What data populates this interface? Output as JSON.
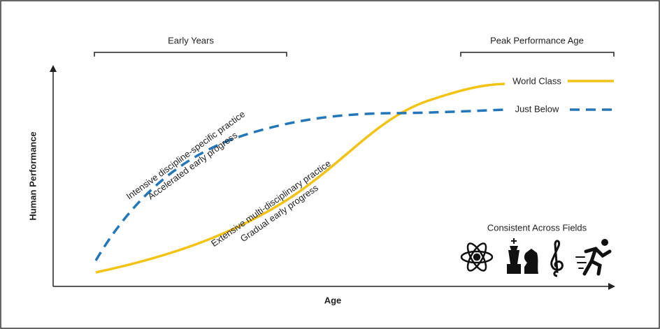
{
  "brackets": {
    "early": "Early Years",
    "peak": "Peak Performance Age"
  },
  "axes": {
    "y_label": "Human Performance",
    "x_label": "Age"
  },
  "curves": {
    "world_class": "World Class",
    "just_below": "Just Below"
  },
  "annotations": {
    "specialist": [
      "Intensive discipline-specific practice",
      "Accelerated early progress"
    ],
    "generalist": [
      "Extensive multi-disciplinary practice",
      "Gradual early progress"
    ]
  },
  "fields": {
    "title": "Consistent Across Fields"
  }
}
